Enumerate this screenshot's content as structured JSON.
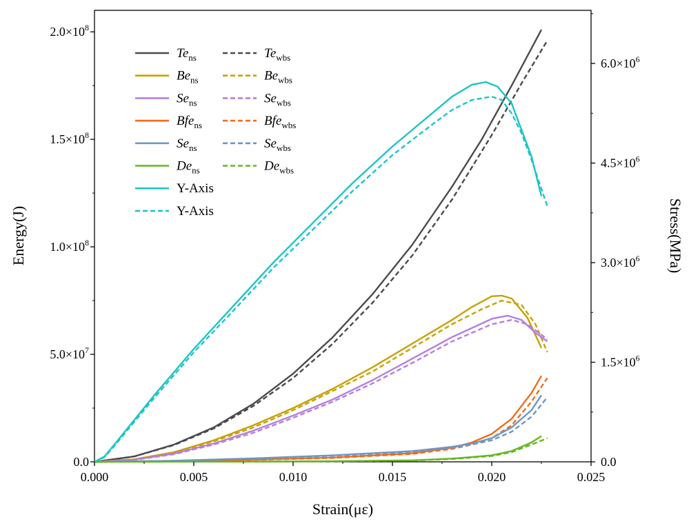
{
  "chart_data": {
    "type": "line",
    "xlabel": "Strain(με)",
    "ylabel": "Energy(J)",
    "y2label": "Stress(MPa)",
    "xlim": [
      0,
      0.025
    ],
    "ylim": [
      0,
      210000000
    ],
    "y2lim": [
      0,
      6800000
    ],
    "x_ticks": [
      {
        "v": 0,
        "label": "0.000"
      },
      {
        "v": 0.005,
        "label": "0.005"
      },
      {
        "v": 0.01,
        "label": "0.010"
      },
      {
        "v": 0.015,
        "label": "0.015"
      },
      {
        "v": 0.02,
        "label": "0.020"
      },
      {
        "v": 0.025,
        "label": "0.025"
      }
    ],
    "y_ticks": [
      {
        "v": 0,
        "label": "0.0",
        "m": "",
        "e": ""
      },
      {
        "v": 50000000,
        "label": "5.0×10^7",
        "m": "5.0×10",
        "e": "7"
      },
      {
        "v": 100000000,
        "label": "1.0×10^8",
        "m": "1.0×10",
        "e": "8"
      },
      {
        "v": 150000000,
        "label": "1.5×10^8",
        "m": "1.5×10",
        "e": "8"
      },
      {
        "v": 200000000,
        "label": "2.0×10^8",
        "m": "2.0×10",
        "e": "8"
      }
    ],
    "y2_ticks": [
      {
        "v": 0,
        "label": "0.0",
        "m": "",
        "e": ""
      },
      {
        "v": 1500000,
        "label": "1.5×10^6",
        "m": "1.5×10",
        "e": "6"
      },
      {
        "v": 3000000,
        "label": "3.0×10^6",
        "m": "3.0×10",
        "e": "6"
      },
      {
        "v": 4500000,
        "label": "4.5×10^6",
        "m": "4.5×10",
        "e": "6"
      },
      {
        "v": 6000000,
        "label": "6.0×10^6",
        "m": "6.0×10",
        "e": "6"
      }
    ],
    "legend_position": "top-left",
    "series": [
      {
        "name": "Te_ns",
        "base": "Te",
        "sub": "ns",
        "color": "#4a4a4a",
        "dash": false,
        "axis": "left",
        "x": [
          0,
          0.002,
          0.004,
          0.006,
          0.008,
          0.01,
          0.012,
          0.014,
          0.016,
          0.018,
          0.0195,
          0.021,
          0.0225
        ],
        "y": [
          0,
          2500000,
          8000000,
          16000000,
          27000000,
          41000000,
          58000000,
          78000000,
          101000000,
          128000000,
          150000000,
          175000000,
          201000000
        ]
      },
      {
        "name": "Te_wbs",
        "base": "Te",
        "sub": "wbs",
        "color": "#4a4a4a",
        "dash": true,
        "axis": "left",
        "x": [
          0,
          0.002,
          0.004,
          0.006,
          0.008,
          0.01,
          0.012,
          0.014,
          0.016,
          0.018,
          0.02,
          0.0215,
          0.0228
        ],
        "y": [
          0,
          2500000,
          7800000,
          15500000,
          26000000,
          39000000,
          55000000,
          74000000,
          96000000,
          122000000,
          152000000,
          176000000,
          196000000
        ]
      },
      {
        "name": "Be_ns",
        "base": "Be",
        "sub": "ns",
        "color": "#c9a000",
        "dash": false,
        "axis": "left",
        "x": [
          0,
          0.002,
          0.004,
          0.006,
          0.008,
          0.01,
          0.012,
          0.014,
          0.016,
          0.018,
          0.019,
          0.02,
          0.0205,
          0.021,
          0.0218,
          0.0225
        ],
        "y": [
          0,
          1200000,
          4500000,
          10000000,
          17000000,
          25000000,
          34000000,
          44000000,
          55000000,
          66000000,
          72000000,
          77000000,
          77300000,
          76000000,
          67000000,
          53000000
        ]
      },
      {
        "name": "Be_wbs",
        "base": "Be",
        "sub": "wbs",
        "color": "#c9a000",
        "dash": true,
        "axis": "left",
        "x": [
          0,
          0.002,
          0.004,
          0.006,
          0.008,
          0.01,
          0.012,
          0.014,
          0.016,
          0.018,
          0.0195,
          0.0205,
          0.0215,
          0.0222,
          0.0228
        ],
        "y": [
          0,
          1100000,
          4200000,
          9500000,
          16000000,
          24000000,
          33000000,
          42000000,
          53000000,
          64000000,
          71000000,
          75000000,
          73000000,
          64000000,
          51000000
        ]
      },
      {
        "name": "Se_ns (purple)",
        "base": "Se",
        "sub": "ns",
        "color": "#b57ee0",
        "dash": false,
        "axis": "left",
        "x": [
          0,
          0.002,
          0.004,
          0.006,
          0.008,
          0.01,
          0.012,
          0.014,
          0.016,
          0.018,
          0.02,
          0.0208,
          0.0215,
          0.0222,
          0.0228
        ],
        "y": [
          0,
          1000000,
          3800000,
          8500000,
          14500000,
          21500000,
          29000000,
          38000000,
          48000000,
          58000000,
          66500000,
          68000000,
          66000000,
          60000000,
          56000000
        ]
      },
      {
        "name": "Se_wbs (purple)",
        "base": "Se",
        "sub": "wbs",
        "color": "#b57ee0",
        "dash": true,
        "axis": "left",
        "x": [
          0,
          0.002,
          0.004,
          0.006,
          0.008,
          0.01,
          0.012,
          0.014,
          0.016,
          0.018,
          0.02,
          0.021,
          0.0218,
          0.0228
        ],
        "y": [
          0,
          900000,
          3500000,
          8000000,
          13500000,
          20500000,
          28000000,
          36500000,
          46000000,
          56000000,
          64000000,
          66000000,
          64000000,
          57000000
        ]
      },
      {
        "name": "Bfe_ns",
        "base": "Bfe",
        "sub": "ns",
        "color": "#f26b1d",
        "dash": false,
        "axis": "left",
        "x": [
          0,
          0.004,
          0.008,
          0.012,
          0.016,
          0.018,
          0.019,
          0.02,
          0.021,
          0.022,
          0.0225
        ],
        "y": [
          0,
          300000,
          1000000,
          2000000,
          4000000,
          6500000,
          9000000,
          13000000,
          20000000,
          32000000,
          40000000
        ]
      },
      {
        "name": "Bfe_wbs",
        "base": "Bfe",
        "sub": "wbs",
        "color": "#f26b1d",
        "dash": true,
        "axis": "left",
        "x": [
          0,
          0.004,
          0.008,
          0.012,
          0.016,
          0.018,
          0.019,
          0.02,
          0.021,
          0.022,
          0.0228
        ],
        "y": [
          0,
          300000,
          900000,
          1800000,
          3700000,
          6000000,
          8000000,
          11000000,
          17000000,
          28000000,
          39000000
        ]
      },
      {
        "name": "Se_ns (blue)",
        "base": "Se",
        "sub": "ns",
        "color": "#6b96c8",
        "dash": false,
        "axis": "left",
        "x": [
          0,
          0.004,
          0.008,
          0.012,
          0.016,
          0.018,
          0.019,
          0.02,
          0.021,
          0.022,
          0.0225
        ],
        "y": [
          0,
          500000,
          1600000,
          3000000,
          5000000,
          7000000,
          8500000,
          11000000,
          16000000,
          24000000,
          31000000
        ]
      },
      {
        "name": "Se_wbs (blue)",
        "base": "Se",
        "sub": "wbs",
        "color": "#6b96c8",
        "dash": true,
        "axis": "left",
        "x": [
          0,
          0.004,
          0.008,
          0.012,
          0.016,
          0.018,
          0.019,
          0.02,
          0.021,
          0.022,
          0.0228
        ],
        "y": [
          0,
          500000,
          1500000,
          2800000,
          4700000,
          6500000,
          8000000,
          10000000,
          14000000,
          21000000,
          30000000
        ]
      },
      {
        "name": "De_ns",
        "base": "De",
        "sub": "ns",
        "color": "#64b81e",
        "dash": false,
        "axis": "left",
        "x": [
          0,
          0.008,
          0.012,
          0.016,
          0.018,
          0.019,
          0.02,
          0.021,
          0.022,
          0.0225
        ],
        "y": [
          0,
          100000,
          300000,
          700000,
          1500000,
          2200000,
          3000000,
          5000000,
          9000000,
          12000000
        ]
      },
      {
        "name": "De_wbs",
        "base": "De",
        "sub": "wbs",
        "color": "#64b81e",
        "dash": true,
        "axis": "left",
        "x": [
          0,
          0.008,
          0.012,
          0.016,
          0.018,
          0.019,
          0.02,
          0.021,
          0.022,
          0.0228
        ],
        "y": [
          0,
          100000,
          250000,
          600000,
          1300000,
          2000000,
          2700000,
          4500000,
          8000000,
          11000000
        ]
      },
      {
        "name": "Y-Axis",
        "base": "Y-Axis",
        "sub": "",
        "color": "#1cc4c6",
        "dash": false,
        "axis": "right",
        "x": [
          0,
          0.0005,
          0.001,
          0.003,
          0.005,
          0.007,
          0.009,
          0.011,
          0.013,
          0.015,
          0.017,
          0.018,
          0.019,
          0.0197,
          0.0203,
          0.021,
          0.0215,
          0.022,
          0.0225
        ],
        "y": [
          0,
          80000,
          260000,
          1000000,
          1700000,
          2350000,
          3000000,
          3600000,
          4200000,
          4750000,
          5250000,
          5500000,
          5680000,
          5720000,
          5650000,
          5400000,
          5000000,
          4600000,
          4000000
        ]
      },
      {
        "name": "Y-Axis",
        "base": "Y-Axis",
        "sub": "",
        "color": "#1cc4c6",
        "dash": true,
        "axis": "right",
        "x": [
          0,
          0.0005,
          0.001,
          0.003,
          0.005,
          0.007,
          0.009,
          0.011,
          0.013,
          0.015,
          0.017,
          0.018,
          0.019,
          0.02,
          0.0205,
          0.021,
          0.0215,
          0.022,
          0.0228
        ],
        "y": [
          0,
          70000,
          240000,
          960000,
          1650000,
          2280000,
          2920000,
          3500000,
          4080000,
          4620000,
          5080000,
          5300000,
          5450000,
          5500000,
          5450000,
          5250000,
          4950000,
          4550000,
          3850000
        ]
      }
    ]
  }
}
